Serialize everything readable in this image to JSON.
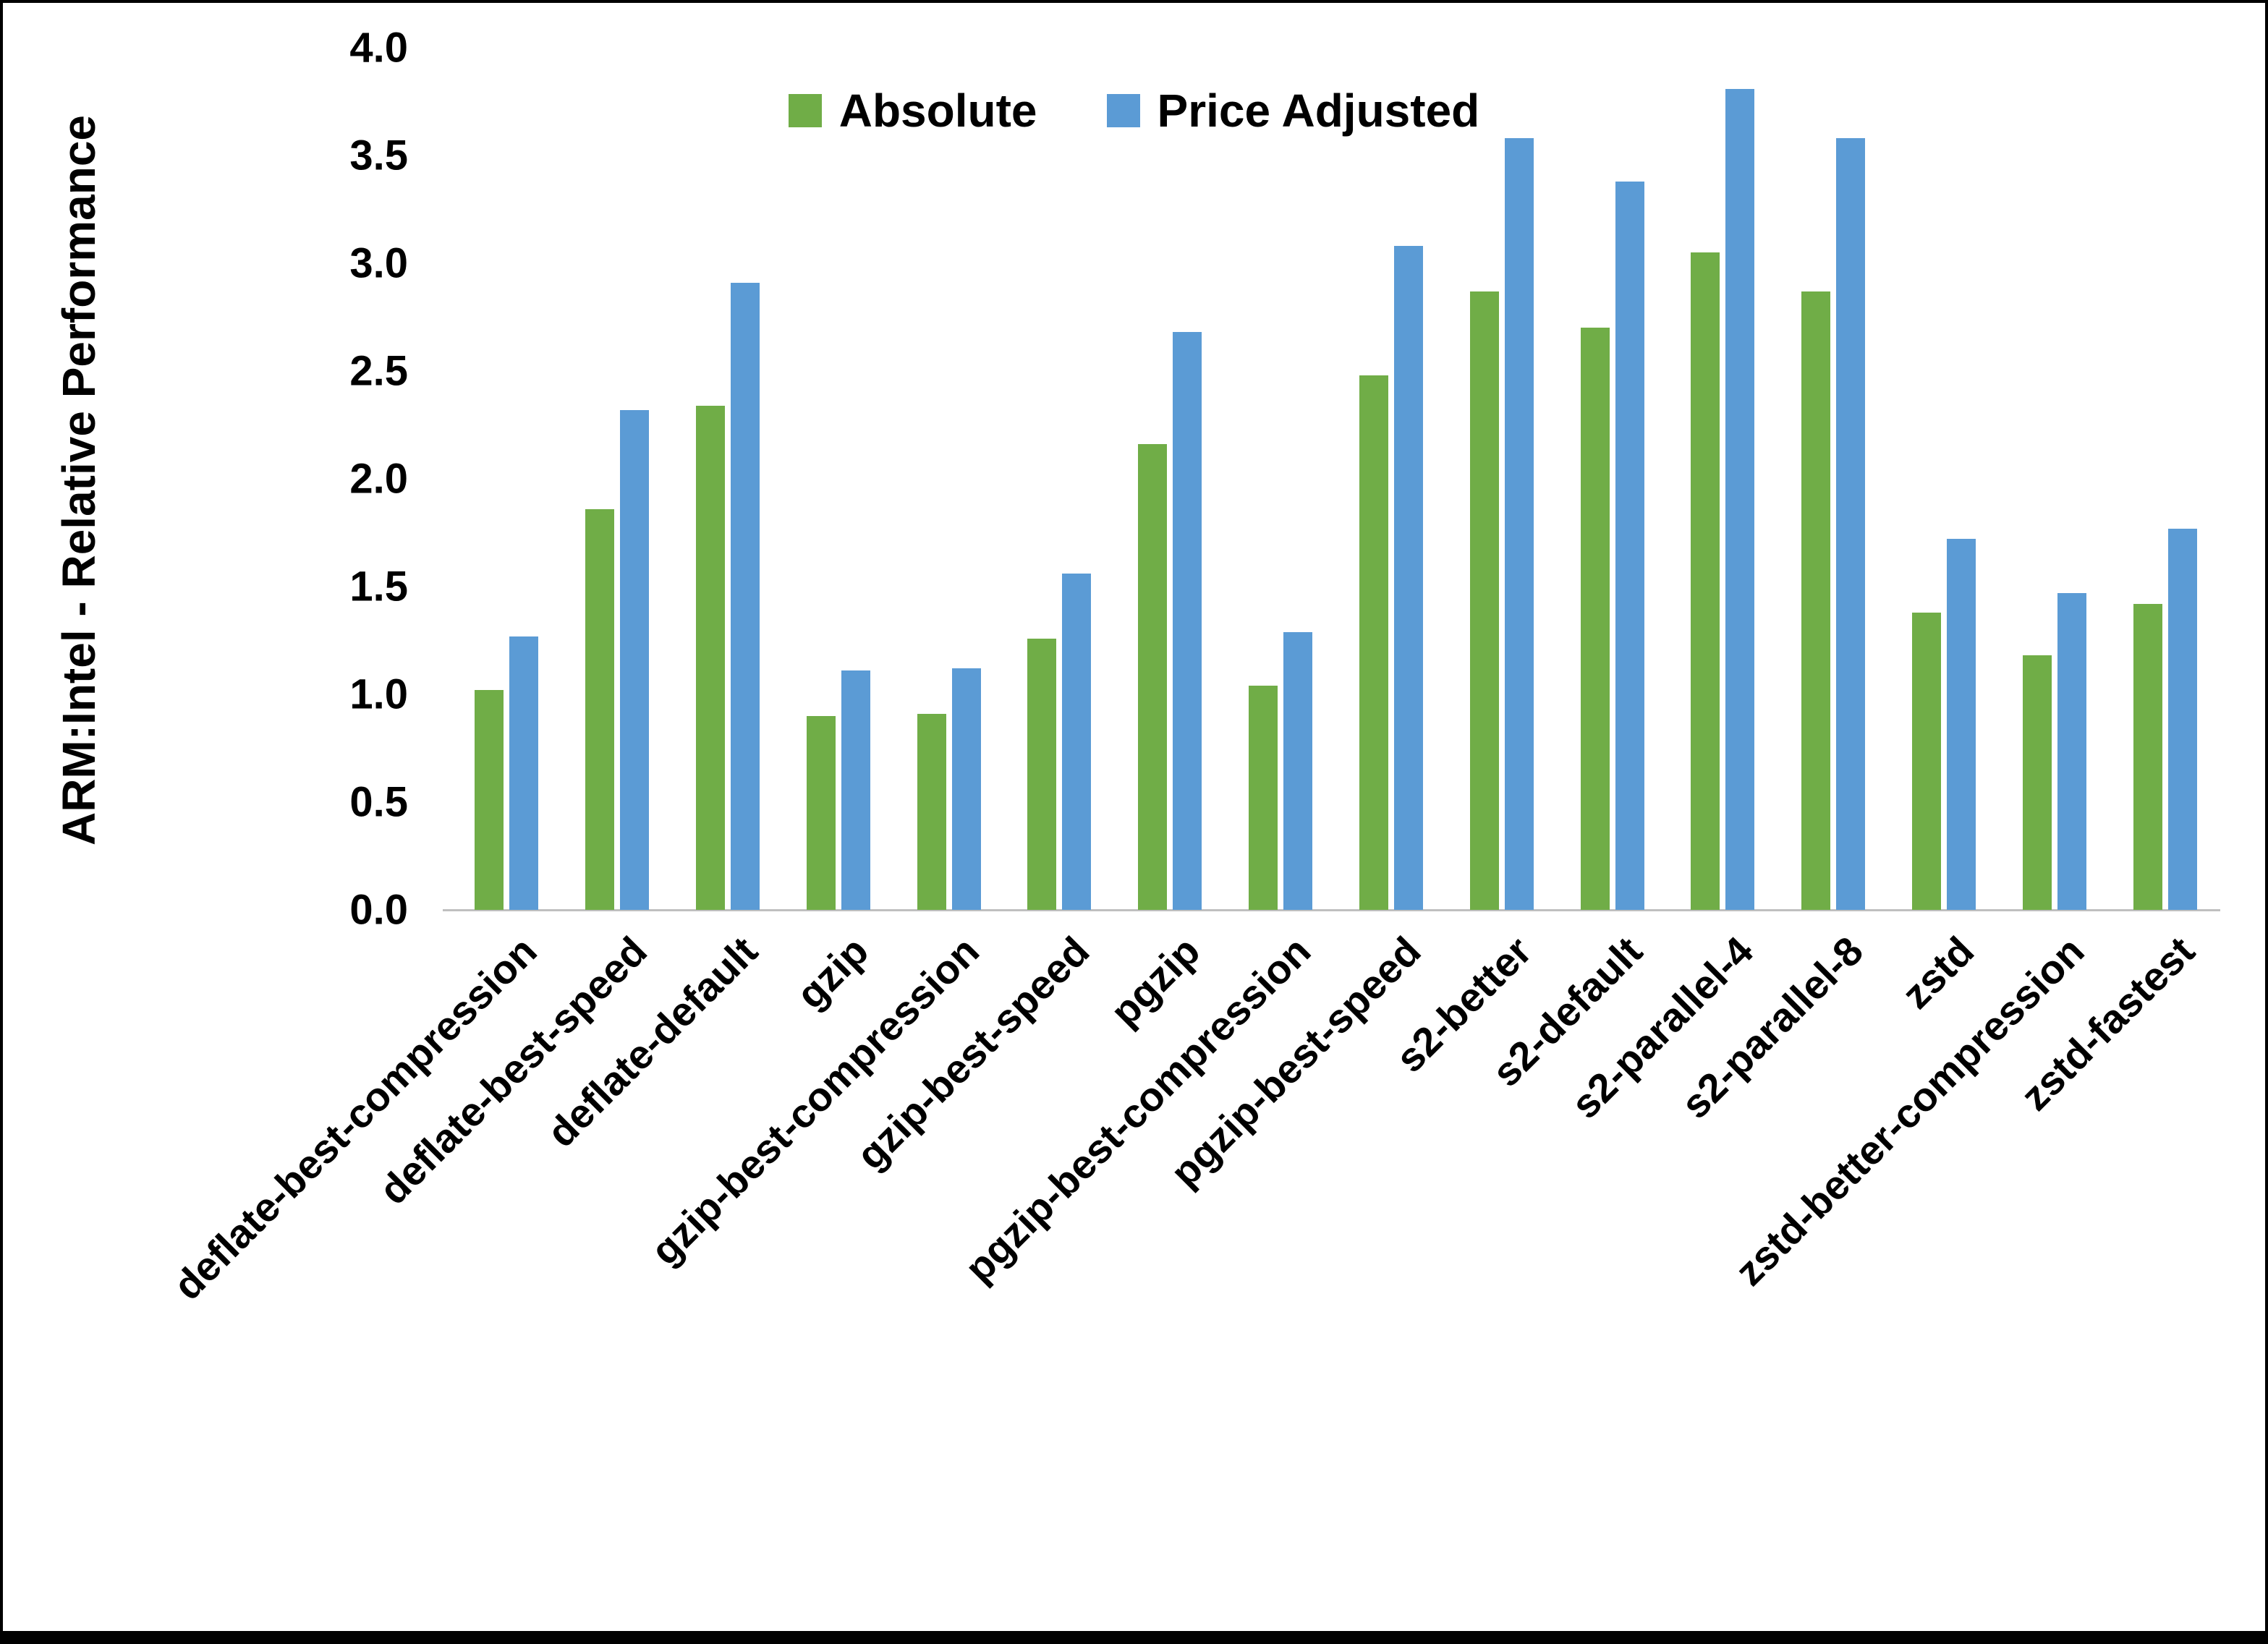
{
  "chart_data": {
    "type": "bar",
    "title": "",
    "ylabel": "ARM:Intel - Relative Performance",
    "xlabel": "",
    "ylim": [
      0,
      4.0
    ],
    "ytick_step": 0.5,
    "ytick_labels": [
      "0.0",
      "0.5",
      "1.0",
      "1.5",
      "2.0",
      "2.5",
      "3.0",
      "3.5",
      "4.0"
    ],
    "grid": false,
    "legend_position": "top-center",
    "categories": [
      "deflate-best-compression",
      "deflate-best-speed",
      "deflate-default",
      "gzip",
      "gzip-best-compression",
      "gzip-best-speed",
      "pgzip",
      "pgzip-best-compression",
      "pgzip-best-speed",
      "s2-better",
      "s2-default",
      "s2-parallel-4",
      "s2-parallel-8",
      "zstd",
      "zstd-better-compression",
      "zstd-fastest"
    ],
    "series": [
      {
        "name": "Absolute",
        "color": "#70AD47",
        "values": [
          1.02,
          1.86,
          2.34,
          0.9,
          0.91,
          1.26,
          2.16,
          1.04,
          2.48,
          2.87,
          2.7,
          3.05,
          2.87,
          1.38,
          1.18,
          1.42
        ]
      },
      {
        "name": "Price Adjusted",
        "color": "#5B9BD5",
        "values": [
          1.27,
          2.32,
          2.91,
          1.11,
          1.12,
          1.56,
          2.68,
          1.29,
          3.08,
          3.58,
          3.38,
          3.81,
          3.58,
          1.72,
          1.47,
          1.77
        ]
      }
    ]
  }
}
